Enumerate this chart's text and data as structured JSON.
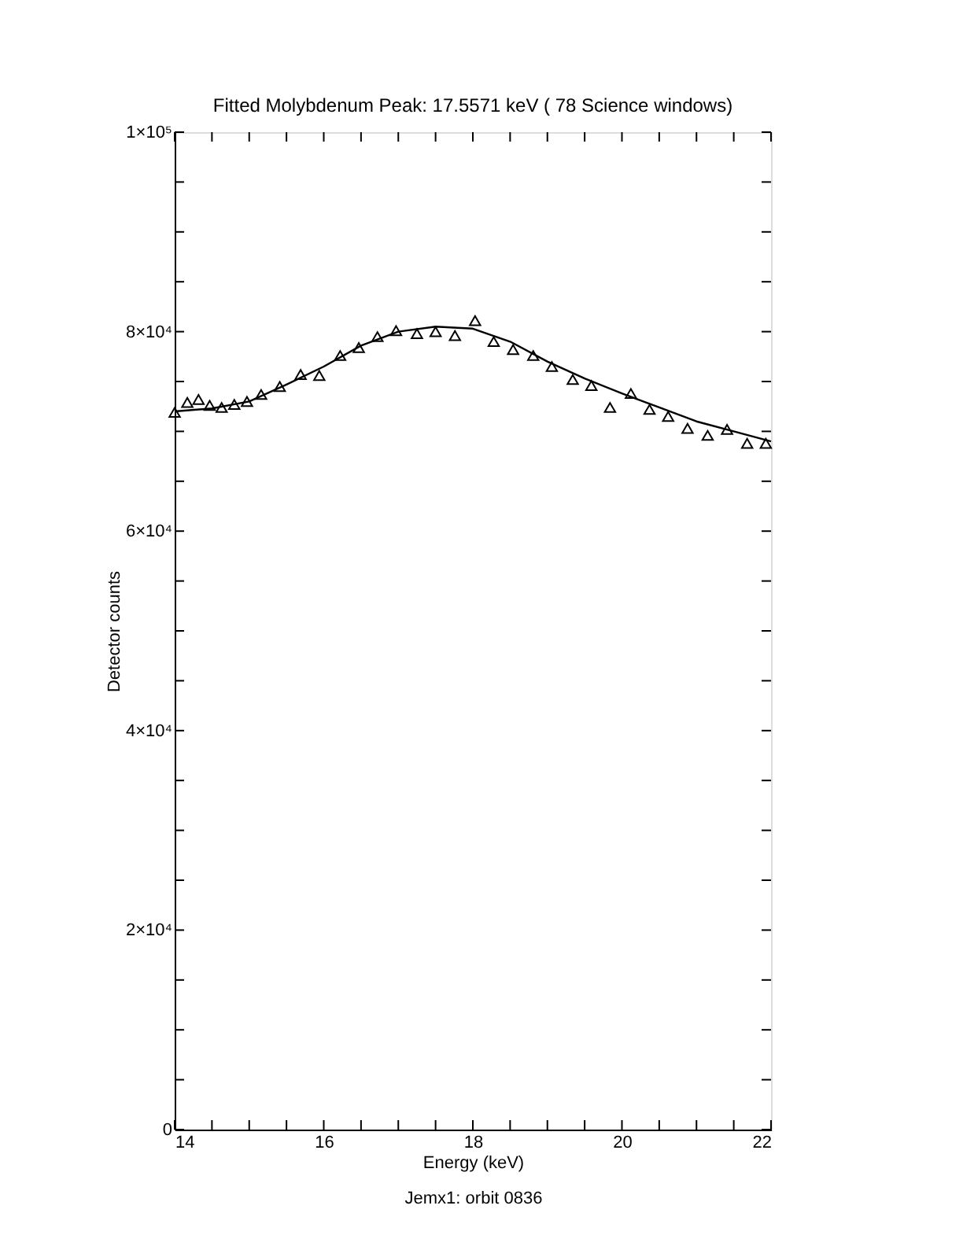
{
  "chart_data": {
    "type": "scatter",
    "title": "Fitted Molybdenum Peak: 17.5571 keV ( 78 Science windows)",
    "xlabel": "Energy (keV)",
    "ylabel": "Detector counts",
    "annotations": [
      "Jemx1: orbit 0836"
    ],
    "xlim": [
      14,
      22
    ],
    "xticks": [
      14,
      {
        "value": 14.5,
        "label": null
      },
      {
        "value": 15,
        "label": null
      },
      {
        "value": 15.5,
        "label": null
      },
      16,
      {
        "value": 16.5,
        "label": null
      },
      {
        "value": 17,
        "label": null
      },
      {
        "value": 17.5,
        "label": null
      },
      18,
      {
        "value": 18.5,
        "label": null
      },
      {
        "value": 19,
        "label": null
      },
      {
        "value": 19.5,
        "label": null
      },
      20,
      {
        "value": 20.5,
        "label": null
      },
      {
        "value": 21,
        "label": null
      },
      {
        "value": 21.5,
        "label": null
      },
      22
    ],
    "ylim": [
      0,
      100000
    ],
    "yticks": [
      0,
      {
        "value": 5000,
        "label": null
      },
      {
        "value": 10000,
        "label": null
      },
      {
        "value": 15000,
        "label": null
      },
      {
        "value": 20000,
        "label": "2×10⁴"
      },
      {
        "value": 25000,
        "label": null
      },
      {
        "value": 30000,
        "label": null
      },
      {
        "value": 35000,
        "label": null
      },
      {
        "value": 40000,
        "label": "4×10⁴"
      },
      {
        "value": 45000,
        "label": null
      },
      {
        "value": 50000,
        "label": null
      },
      {
        "value": 55000,
        "label": null
      },
      {
        "value": 60000,
        "label": "6×10⁴"
      },
      {
        "value": 65000,
        "label": null
      },
      {
        "value": 70000,
        "label": null
      },
      {
        "value": 75000,
        "label": null
      },
      {
        "value": 80000,
        "label": "8×10⁴"
      },
      {
        "value": 85000,
        "label": null
      },
      {
        "value": 90000,
        "label": null
      },
      {
        "value": 95000,
        "label": null
      },
      {
        "value": 100000,
        "label": "1×10⁵"
      }
    ],
    "grid": false,
    "series": [
      {
        "type": "scatter",
        "marker": "triangle",
        "color": "#000000",
        "x": [
          14.0,
          14.17,
          14.32,
          14.47,
          14.63,
          14.8,
          14.97,
          15.16,
          15.41,
          15.69,
          15.94,
          16.22,
          16.47,
          16.72,
          16.97,
          17.25,
          17.5,
          17.76,
          18.03,
          18.28,
          18.54,
          18.81,
          19.06,
          19.34,
          19.59,
          19.84,
          20.12,
          20.37,
          20.62,
          20.88,
          21.15,
          21.41,
          21.68,
          21.93
        ],
        "values": [
          71900,
          72900,
          73200,
          72600,
          72400,
          72700,
          73000,
          73700,
          74500,
          75700,
          75600,
          77600,
          78400,
          79500,
          80100,
          79800,
          80000,
          79600,
          81100,
          79000,
          78200,
          77600,
          76500,
          75200,
          74600,
          72400,
          73800,
          72200,
          71500,
          70300,
          69600,
          70200,
          68800,
          68800
        ]
      },
      {
        "type": "line",
        "marker": "none",
        "line_style": "solid",
        "color": "#000000",
        "x": [
          14,
          14.5,
          15,
          15.5,
          16,
          16.5,
          17,
          17.5,
          18,
          18.5,
          19,
          19.5,
          20,
          20.5,
          21,
          21.5,
          22
        ],
        "values": [
          72000,
          72300,
          73000,
          74700,
          76500,
          78600,
          80000,
          80500,
          80300,
          79000,
          77000,
          75300,
          73800,
          72400,
          71000,
          70000,
          69000
        ]
      }
    ]
  }
}
